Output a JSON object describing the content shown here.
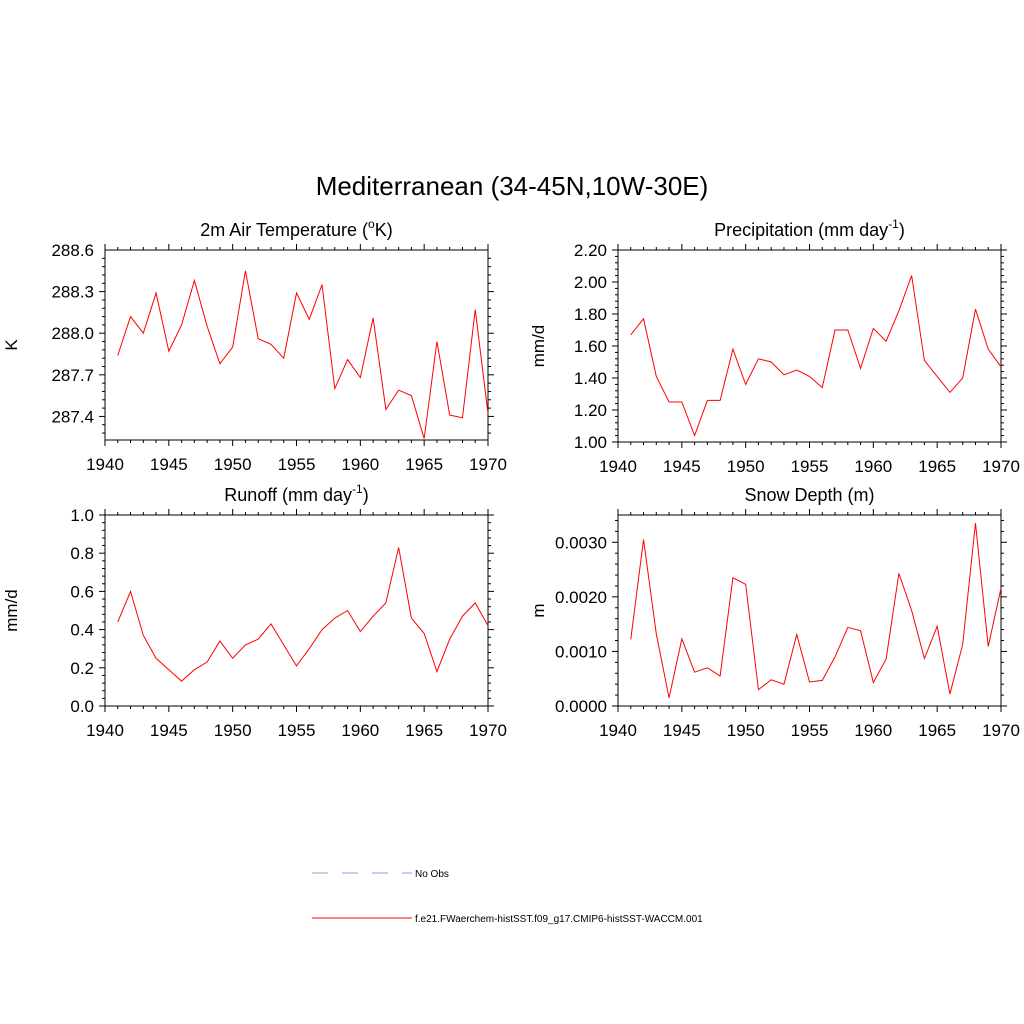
{
  "figure": {
    "title": "Mediterranean (34-45N,10W-30E)",
    "legend": [
      {
        "label": "No Obs",
        "color": "#9999dd",
        "style": "dashed"
      },
      {
        "label": "f.e21.FWaerchem-histSST.f09_g17.CMIP6-histSST-WACCM.001",
        "color": "#ff0000",
        "style": "solid"
      }
    ]
  },
  "chart_data": [
    {
      "type": "line",
      "title": "2m Air Temperature (",
      "title_sup": "o",
      "title_end": "K)",
      "ylabel": "K",
      "xlim": [
        1940,
        1970
      ],
      "ylim": [
        287.23,
        288.6
      ],
      "xticks": [
        1940,
        1945,
        1950,
        1955,
        1960,
        1965,
        1970
      ],
      "yticks": [
        287.4,
        287.7,
        288.0,
        288.3,
        288.6
      ],
      "ytick_labels": [
        "287.4",
        "287.7",
        "288.0",
        "288.3",
        "288.6"
      ],
      "series": [
        {
          "color": "#ff0000",
          "x": [
            1941,
            1942,
            1943,
            1944,
            1945,
            1946,
            1947,
            1948,
            1949,
            1950,
            1951,
            1952,
            1953,
            1954,
            1955,
            1956,
            1957,
            1958,
            1959,
            1960,
            1961,
            1962,
            1963,
            1964,
            1965,
            1966,
            1967,
            1968,
            1969,
            1970
          ],
          "values": [
            287.84,
            288.12,
            288.0,
            288.29,
            287.87,
            288.06,
            288.38,
            288.05,
            287.78,
            287.9,
            288.45,
            287.96,
            287.92,
            287.82,
            288.29,
            288.1,
            288.35,
            287.6,
            287.81,
            287.68,
            288.11,
            287.45,
            287.59,
            287.55,
            287.24,
            287.94,
            287.41,
            287.39,
            288.17,
            287.42
          ]
        }
      ]
    },
    {
      "type": "line",
      "title": "Precipitation (mm day",
      "title_sup": "-1",
      "title_end": ")",
      "ylabel": "mm/d",
      "xlim": [
        1940,
        1970
      ],
      "ylim": [
        1.0,
        2.2
      ],
      "xticks": [
        1940,
        1945,
        1950,
        1955,
        1960,
        1965,
        1970
      ],
      "yticks": [
        1.0,
        1.2,
        1.4,
        1.6,
        1.8,
        2.0,
        2.2
      ],
      "ytick_labels": [
        "1.00",
        "1.20",
        "1.40",
        "1.60",
        "1.80",
        "2.00",
        "2.20"
      ],
      "series": [
        {
          "color": "#ff0000",
          "x": [
            1941,
            1942,
            1943,
            1944,
            1945,
            1946,
            1947,
            1948,
            1949,
            1950,
            1951,
            1952,
            1953,
            1954,
            1955,
            1956,
            1957,
            1958,
            1959,
            1960,
            1961,
            1962,
            1963,
            1964,
            1965,
            1966,
            1967,
            1968,
            1969,
            1970
          ],
          "values": [
            1.67,
            1.77,
            1.41,
            1.25,
            1.25,
            1.04,
            1.26,
            1.26,
            1.58,
            1.36,
            1.52,
            1.5,
            1.42,
            1.45,
            1.41,
            1.34,
            1.7,
            1.7,
            1.46,
            1.71,
            1.63,
            1.82,
            2.04,
            1.51,
            1.41,
            1.31,
            1.4,
            1.83,
            1.58,
            1.47
          ]
        }
      ]
    },
    {
      "type": "line",
      "title": "Runoff (mm day",
      "title_sup": "-1",
      "title_end": ")",
      "ylabel": "mm/d",
      "xlim": [
        1940,
        1970
      ],
      "ylim": [
        0.0,
        1.0
      ],
      "xticks": [
        1940,
        1945,
        1950,
        1955,
        1960,
        1965,
        1970
      ],
      "yticks": [
        0.0,
        0.2,
        0.4,
        0.6,
        0.8,
        1.0
      ],
      "ytick_labels": [
        "0.0",
        "0.2",
        "0.4",
        "0.6",
        "0.8",
        "1.0"
      ],
      "series": [
        {
          "color": "#ff0000",
          "x": [
            1941,
            1942,
            1943,
            1944,
            1945,
            1946,
            1947,
            1948,
            1949,
            1950,
            1951,
            1952,
            1953,
            1954,
            1955,
            1956,
            1957,
            1958,
            1959,
            1960,
            1961,
            1962,
            1963,
            1964,
            1965,
            1966,
            1967,
            1968,
            1969,
            1970
          ],
          "values": [
            0.44,
            0.6,
            0.37,
            0.25,
            0.19,
            0.13,
            0.19,
            0.23,
            0.34,
            0.25,
            0.32,
            0.35,
            0.43,
            0.32,
            0.21,
            0.3,
            0.4,
            0.46,
            0.5,
            0.39,
            0.47,
            0.54,
            0.83,
            0.46,
            0.38,
            0.18,
            0.35,
            0.47,
            0.54,
            0.42
          ]
        }
      ]
    },
    {
      "type": "line",
      "title": "Snow Depth (m)",
      "title_sup": "",
      "title_end": "",
      "ylabel": "m",
      "xlim": [
        1940,
        1970
      ],
      "ylim": [
        0.0,
        0.0035
      ],
      "xticks": [
        1940,
        1945,
        1950,
        1955,
        1960,
        1965,
        1970
      ],
      "yticks": [
        0.0,
        0.001,
        0.002,
        0.003
      ],
      "ytick_labels": [
        "0.0000",
        "0.0010",
        "0.0020",
        "0.0030"
      ],
      "series": [
        {
          "color": "#ff0000",
          "x": [
            1941,
            1942,
            1943,
            1944,
            1945,
            1946,
            1947,
            1948,
            1949,
            1950,
            1951,
            1952,
            1953,
            1954,
            1955,
            1956,
            1957,
            1958,
            1959,
            1960,
            1961,
            1962,
            1963,
            1964,
            1965,
            1966,
            1967,
            1968,
            1969,
            1970
          ],
          "values": [
            0.00122,
            0.00305,
            0.00132,
            0.00015,
            0.00123,
            0.00062,
            0.0007,
            0.00055,
            0.00235,
            0.00223,
            0.0003,
            0.00048,
            0.0004,
            0.00131,
            0.00044,
            0.00047,
            0.0009,
            0.00144,
            0.00138,
            0.00043,
            0.00086,
            0.00243,
            0.00175,
            0.00087,
            0.00146,
            0.00022,
            0.00113,
            0.00335,
            0.00109,
            0.00216
          ]
        }
      ]
    }
  ]
}
